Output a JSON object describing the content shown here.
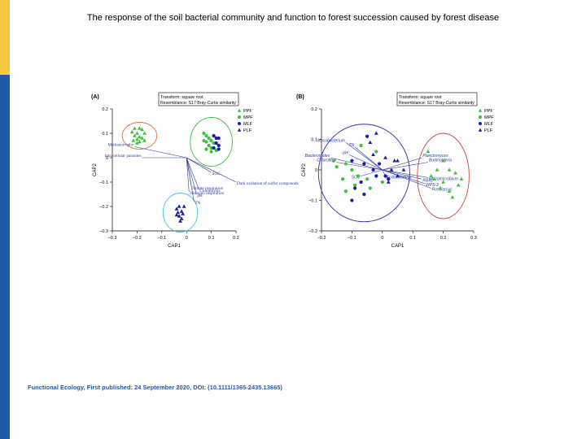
{
  "slide": {
    "title": "The response of the soil bacterial community and function to forest succession caused by forest disease",
    "footer": "Functional Ecology, First published: 24 September 2020, DOI: (10.1111/1365-2435.13665)"
  },
  "colors": {
    "PPF": "#3fbf3f",
    "MPF": "#3fbf3f",
    "MLF": "#1a1aa8",
    "PLF": "#1a1aa8",
    "ellipse_green": "#3fbf3f",
    "ellipse_orange": "#e07040",
    "ellipse_cyan": "#40c8e8",
    "ellipse_blue": "#3030a0",
    "ellipse_red": "#d04848",
    "vector": "#2a3aa0"
  },
  "chart_data": [
    {
      "type": "scatter",
      "panel": "(A)",
      "transform_text": "Transform: square root",
      "resemblance_text": "Resemblance: S17 Bray-Curtis similarity",
      "xlabel": "CAP1",
      "ylabel": "CAP2",
      "xlim": [
        -0.3,
        0.2
      ],
      "ylim": [
        -0.3,
        0.2
      ],
      "xticks": [
        "-0.3",
        "-0.2",
        "-0.1",
        "0",
        "0.1",
        "0.2"
      ],
      "yticks": [
        "0.2",
        "0.1",
        "0",
        "-0.1",
        "-0.2",
        "-0.3"
      ],
      "legend": [
        "PPF",
        "MPF",
        "MLF",
        "PLF"
      ],
      "series": [
        {
          "name": "PPF",
          "marker": "triangle",
          "points": [
            [
              -0.21,
              0.12
            ],
            [
              -0.19,
              0.12
            ],
            [
              -0.18,
              0.115
            ],
            [
              -0.22,
              0.105
            ],
            [
              -0.2,
              0.1
            ],
            [
              -0.17,
              0.1
            ],
            [
              -0.21,
              0.09
            ],
            [
              -0.19,
              0.085
            ],
            [
              -0.18,
              0.08
            ],
            [
              -0.2,
              0.075
            ],
            [
              -0.17,
              0.07
            ],
            [
              -0.215,
              0.07
            ],
            [
              -0.19,
              0.065
            ],
            [
              -0.2,
              0.06
            ]
          ]
        },
        {
          "name": "MPF",
          "marker": "circle",
          "points": [
            [
              0.07,
              0.1
            ],
            [
              0.08,
              0.09
            ],
            [
              0.09,
              0.08
            ],
            [
              0.07,
              0.07
            ],
            [
              0.1,
              0.07
            ],
            [
              0.08,
              0.065
            ],
            [
              0.11,
              0.06
            ],
            [
              0.09,
              0.05
            ],
            [
              0.1,
              0.04
            ],
            [
              0.08,
              0.035
            ],
            [
              0.12,
              0.03
            ],
            [
              0.1,
              0.025
            ]
          ]
        },
        {
          "name": "MLF",
          "marker": "circle",
          "points": [
            [
              0.11,
              0.09
            ],
            [
              0.12,
              0.08
            ],
            [
              0.13,
              0.08
            ],
            [
              0.12,
              0.06
            ],
            [
              0.13,
              0.05
            ],
            [
              0.11,
              0.04
            ],
            [
              0.13,
              0.035
            ]
          ]
        },
        {
          "name": "PLF",
          "marker": "triangle",
          "points": [
            [
              -0.03,
              -0.2
            ],
            [
              -0.01,
              -0.2
            ],
            [
              -0.04,
              -0.21
            ],
            [
              -0.02,
              -0.22
            ],
            [
              -0.035,
              -0.225
            ],
            [
              -0.015,
              -0.23
            ],
            [
              -0.03,
              -0.24
            ],
            [
              -0.02,
              -0.25
            ],
            [
              -0.025,
              -0.26
            ],
            [
              -0.04,
              -0.235
            ]
          ]
        }
      ],
      "ellipses": [
        {
          "group": "PPF",
          "color": "orange",
          "cx": -0.19,
          "cy": 0.09,
          "rx": 0.07,
          "ry": 0.055
        },
        {
          "group": "MPF/MLF",
          "color": "green",
          "cx": 0.1,
          "cy": 0.065,
          "rx": 0.085,
          "ry": 0.1
        },
        {
          "group": "PLF",
          "color": "cyan",
          "cx": -0.025,
          "cy": -0.225,
          "rx": 0.07,
          "ry": 0.08
        }
      ],
      "vectors": [
        {
          "label": "Methanotrophy",
          "x": -0.21,
          "y": 0.045
        },
        {
          "label": "Intracellular parasites",
          "x": -0.18,
          "y": 0.0
        },
        {
          "label": "SOC",
          "x": 0.1,
          "y": -0.06
        },
        {
          "label": "Dark oxidation of sulfur compounds",
          "x": 0.2,
          "y": -0.1
        },
        {
          "label": "Nitrate respiration",
          "x": 0.02,
          "y": -0.12
        },
        {
          "label": "Chitinolysis",
          "x": 0.05,
          "y": -0.13
        },
        {
          "label": "Nitrogen respiration",
          "x": 0.01,
          "y": -0.14
        },
        {
          "label": "pH",
          "x": 0.04,
          "y": -0.15
        },
        {
          "label": "TN",
          "x": 0.03,
          "y": -0.18
        }
      ]
    },
    {
      "type": "scatter",
      "panel": "(B)",
      "transform_text": "Transform: square root",
      "resemblance_text": "Resemblance: S17 Bray-Curtis similarity",
      "xlabel": "CAP1",
      "ylabel": "CAP2",
      "xlim": [
        -0.2,
        0.3
      ],
      "ylim": [
        -0.2,
        0.2
      ],
      "xticks": [
        "-0.2",
        "-0.1",
        "0",
        "0.1",
        "0.2",
        "0.3"
      ],
      "yticks": [
        "0.2",
        "0.1",
        "0",
        "-0.1",
        "-0.2"
      ],
      "legend": [
        "PPF",
        "MPF",
        "MLF",
        "PLF"
      ],
      "series": [
        {
          "name": "PPF",
          "marker": "triangle",
          "points": [
            [
              0.15,
              0.06
            ],
            [
              0.2,
              0.03
            ],
            [
              0.18,
              0.0
            ],
            [
              0.22,
              0.0
            ],
            [
              0.24,
              -0.01
            ],
            [
              0.17,
              -0.03
            ],
            [
              0.2,
              -0.04
            ],
            [
              0.22,
              -0.07
            ],
            [
              0.25,
              -0.05
            ],
            [
              0.19,
              -0.06
            ],
            [
              0.16,
              -0.02
            ],
            [
              0.23,
              -0.09
            ],
            [
              0.26,
              -0.03
            ]
          ]
        },
        {
          "name": "MPF",
          "marker": "circle",
          "points": [
            [
              -0.16,
              0.03
            ],
            [
              -0.15,
              0.01
            ],
            [
              -0.12,
              0.02
            ],
            [
              -0.1,
              0.0
            ],
            [
              -0.13,
              -0.03
            ],
            [
              -0.08,
              -0.02
            ],
            [
              -0.09,
              -0.05
            ],
            [
              -0.05,
              -0.03
            ],
            [
              -0.04,
              -0.06
            ],
            [
              -0.12,
              -0.07
            ],
            [
              -0.02,
              0.06
            ],
            [
              0.0,
              -0.04
            ],
            [
              -0.07,
              0.08
            ]
          ]
        },
        {
          "name": "MLF",
          "marker": "circle",
          "points": [
            [
              -0.1,
              0.03
            ],
            [
              -0.06,
              0.02
            ],
            [
              -0.05,
              0.11
            ],
            [
              -0.03,
              0.0
            ],
            [
              -0.02,
              -0.02
            ],
            [
              0.01,
              -0.02
            ],
            [
              -0.07,
              -0.04
            ],
            [
              -0.1,
              -0.1
            ],
            [
              -0.06,
              -0.08
            ],
            [
              0.02,
              -0.03
            ],
            [
              -0.01,
              0.02
            ],
            [
              -0.09,
              -0.06
            ]
          ]
        },
        {
          "name": "PLF",
          "marker": "triangle",
          "points": [
            [
              -0.02,
              0.12
            ],
            [
              0.01,
              0.04
            ],
            [
              0.04,
              0.03
            ],
            [
              0.03,
              0.0
            ],
            [
              0.05,
              -0.02
            ],
            [
              0.02,
              -0.04
            ],
            [
              -0.04,
              0.09
            ],
            [
              0.07,
              0.0
            ],
            [
              -0.03,
              0.05
            ],
            [
              0.05,
              0.03
            ]
          ]
        }
      ],
      "ellipses": [
        {
          "group": "mixed",
          "color": "blue",
          "cx": -0.06,
          "cy": -0.01,
          "rx": 0.15,
          "ry": 0.16
        },
        {
          "group": "PPF",
          "color": "red",
          "cx": 0.2,
          "cy": -0.02,
          "rx": 0.085,
          "ry": 0.14
        }
      ],
      "vectors": [
        {
          "label": "Mycobacterium",
          "x": -0.12,
          "y": 0.09
        },
        {
          "label": "TN",
          "x": -0.09,
          "y": 0.075
        },
        {
          "label": "pH",
          "x": -0.11,
          "y": 0.05
        },
        {
          "label": "Bacteroidetes",
          "x": -0.17,
          "y": 0.04
        },
        {
          "label": "Chloroflexi",
          "x": -0.15,
          "y": 0.025
        },
        {
          "label": "SOC",
          "x": -0.07,
          "y": -0.02
        },
        {
          "label": "Planctomyces",
          "x": 0.13,
          "y": 0.04
        },
        {
          "label": "Burkholderia",
          "x": 0.15,
          "y": 0.025
        },
        {
          "label": "Acidobacteria",
          "x": 0.01,
          "y": -0.02
        },
        {
          "label": "Rhizomicrobium",
          "x": 0.15,
          "y": -0.025
        },
        {
          "label": "RB41",
          "x": 0.13,
          "y": -0.03
        },
        {
          "label": "WPS-2",
          "x": 0.14,
          "y": -0.045
        },
        {
          "label": "Roseiarcus",
          "x": 0.16,
          "y": -0.06
        }
      ]
    }
  ]
}
